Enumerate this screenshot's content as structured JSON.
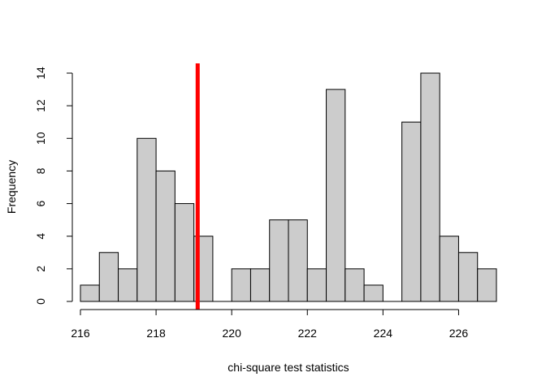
{
  "chart_data": {
    "type": "bar",
    "title": "",
    "xlabel": "chi-square test statistics",
    "ylabel": "Frequency",
    "xlim": [
      216,
      227
    ],
    "ylim": [
      0,
      14
    ],
    "x_ticks": [
      216,
      218,
      220,
      222,
      224,
      226
    ],
    "y_ticks": [
      0,
      2,
      4,
      6,
      8,
      10,
      12,
      14
    ],
    "bin_width": 0.5,
    "bins": [
      {
        "start": 216.0,
        "end": 216.5,
        "count": 1
      },
      {
        "start": 216.5,
        "end": 217.0,
        "count": 3
      },
      {
        "start": 217.0,
        "end": 217.5,
        "count": 2
      },
      {
        "start": 217.5,
        "end": 218.0,
        "count": 10
      },
      {
        "start": 218.0,
        "end": 218.5,
        "count": 8
      },
      {
        "start": 218.5,
        "end": 219.0,
        "count": 6
      },
      {
        "start": 219.0,
        "end": 219.5,
        "count": 4
      },
      {
        "start": 219.5,
        "end": 220.0,
        "count": 0
      },
      {
        "start": 220.0,
        "end": 220.5,
        "count": 2
      },
      {
        "start": 220.5,
        "end": 221.0,
        "count": 2
      },
      {
        "start": 221.0,
        "end": 221.5,
        "count": 5
      },
      {
        "start": 221.5,
        "end": 222.0,
        "count": 5
      },
      {
        "start": 222.0,
        "end": 222.5,
        "count": 2
      },
      {
        "start": 222.5,
        "end": 223.0,
        "count": 13
      },
      {
        "start": 223.0,
        "end": 223.5,
        "count": 2
      },
      {
        "start": 223.5,
        "end": 224.0,
        "count": 1
      },
      {
        "start": 224.0,
        "end": 224.5,
        "count": 0
      },
      {
        "start": 224.5,
        "end": 225.0,
        "count": 11
      },
      {
        "start": 225.0,
        "end": 225.5,
        "count": 14
      },
      {
        "start": 225.5,
        "end": 226.0,
        "count": 4
      },
      {
        "start": 226.0,
        "end": 226.5,
        "count": 3
      },
      {
        "start": 226.5,
        "end": 227.0,
        "count": 2
      }
    ],
    "reference_line": {
      "x": 219.1,
      "color": "#ff0000"
    },
    "bar_fill": "#cccccc",
    "bar_stroke": "#000000",
    "grid": false,
    "legend": "none"
  }
}
